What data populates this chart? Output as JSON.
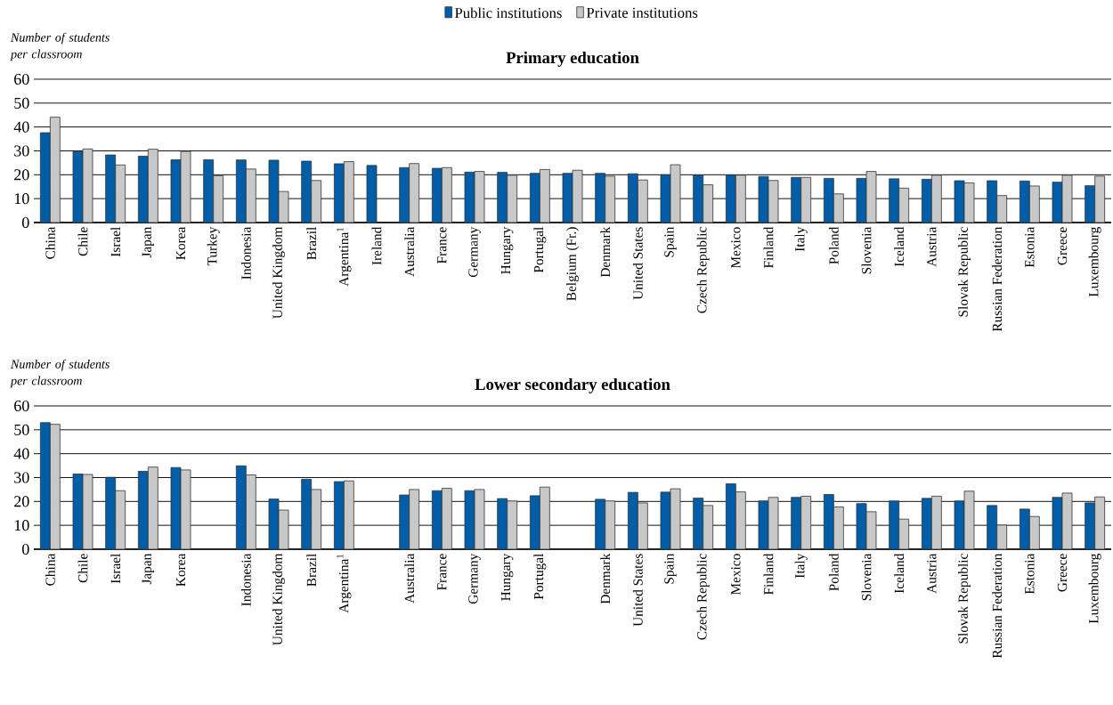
{
  "chart_data": [
    {
      "type": "bar",
      "title": "Primary education",
      "ylabel": "Number of students per classroom",
      "categories": [
        "China",
        "Chile",
        "Israel",
        "Japan",
        "Korea",
        "Turkey",
        "Indonesia",
        "United Kingdom",
        "Brazil",
        "Argentina$^{1}$",
        "Ireland",
        "Australia",
        "France",
        "Germany",
        "Hungary",
        "Portugal",
        "Belgium (Fr.)",
        "Denmark",
        "United States",
        "Spain",
        "Czech Republic",
        "Mexico",
        "Finland",
        "Italy",
        "Poland",
        "Slovenia",
        "Iceland",
        "Austria",
        "Slovak Republic",
        "Russian Federation",
        "Estonia",
        "Greece",
        "Luxembourg"
      ],
      "series": [
        {
          "name": "Public institutions",
          "color": "#005ea8",
          "values": [
            37.6,
            29.7,
            28.3,
            27.8,
            26.3,
            26.3,
            26.2,
            26.1,
            25.7,
            24.6,
            23.9,
            23,
            22.7,
            21.1,
            21,
            20.6,
            20.6,
            20.6,
            20.4,
            20,
            19.8,
            19.8,
            19.3,
            18.9,
            18.5,
            18.5,
            18.3,
            18.1,
            17.5,
            17.5,
            17.4,
            16.9,
            15.4
          ]
        },
        {
          "name": "Private institutions",
          "color": "#c8c8c8",
          "values": [
            44.1,
            30.8,
            24.1,
            30.7,
            29.8,
            19.6,
            22.4,
            13,
            17.6,
            25.5,
            null,
            24.7,
            23,
            21.4,
            19.8,
            22.2,
            21.9,
            19.4,
            17.8,
            24.2,
            15.8,
            19.8,
            17.6,
            18.9,
            12,
            21.4,
            14.4,
            19.8,
            16.6,
            11.3,
            15.3,
            19.8,
            19.4
          ]
        }
      ],
      "ylim": [
        0,
        60
      ],
      "yticks": [
        0,
        10,
        20,
        30,
        40,
        50,
        60
      ],
      "grid": "y",
      "legend": "top"
    },
    {
      "type": "bar",
      "title": "Lower secondary education",
      "ylabel": "Number of students per classroom",
      "categories": [
        "China",
        "Chile",
        "Israel",
        "Japan",
        "Korea",
        null,
        "Indonesia",
        "United Kingdom",
        "Brazil",
        "Argentina$^{1}$",
        null,
        "Australia",
        "France",
        "Germany",
        "Hungary",
        "Portugal",
        null,
        "Denmark",
        "United States",
        "Spain",
        "Czech Republic",
        "Mexico",
        "Finland",
        "Italy",
        "Poland",
        "Slovenia",
        "Iceland",
        "Austria",
        "Slovak Republic",
        "Russian Federation",
        "Estonia",
        "Greece",
        "Luxembourg"
      ],
      "series": [
        {
          "color": "#005ea8",
          "values": [
            53,
            31.5,
            30.1,
            32.6,
            34.2,
            null,
            34.9,
            21,
            29.3,
            28.3,
            null,
            22.7,
            24.5,
            24.5,
            21.2,
            22.4,
            null,
            20.9,
            23.8,
            23.9,
            21.4,
            27.4,
            20.2,
            21.7,
            22.9,
            19.1,
            20.2,
            21.3,
            20.2,
            18.3,
            16.8,
            21.7,
            19.4
          ]
        },
        {
          "color": "#c8c8c8",
          "values": [
            52.3,
            31.3,
            24.5,
            34.4,
            33.2,
            null,
            31.1,
            16.4,
            25,
            28.6,
            null,
            25,
            25.5,
            25,
            20.2,
            26,
            null,
            20.2,
            19.4,
            25.3,
            18.3,
            24,
            21.7,
            22.2,
            17.7,
            15.7,
            12.6,
            22.2,
            24.3,
            10.1,
            13.7,
            23.5,
            21.9
          ]
        }
      ],
      "ylim": [
        0,
        60
      ],
      "yticks": [
        0,
        10,
        20,
        30,
        40,
        50,
        60
      ],
      "grid": "y"
    }
  ]
}
